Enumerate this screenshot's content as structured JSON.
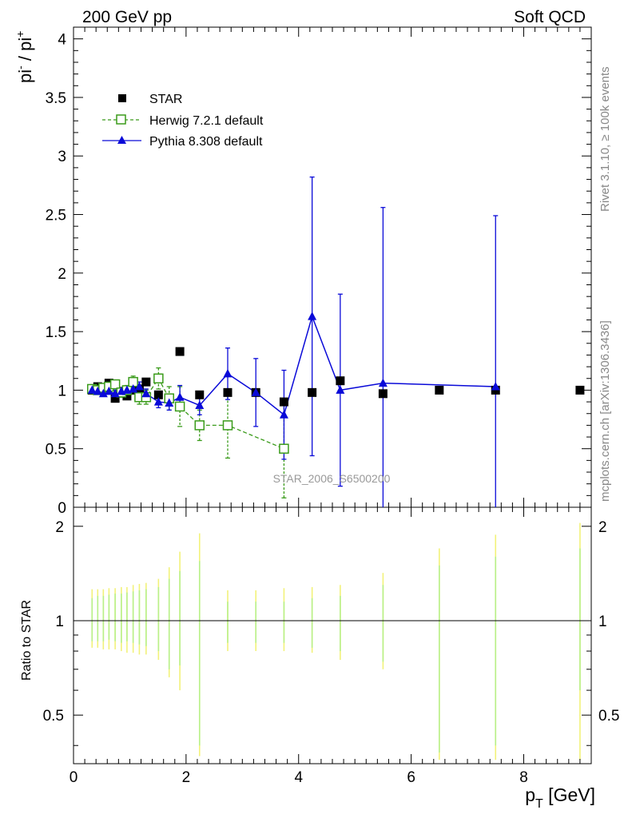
{
  "header": {
    "left_title": "200 GeV pp",
    "right_title": "Soft QCD"
  },
  "side_labels": {
    "rivet": "Rivet 3.1.10, ≥ 100k events",
    "mcplots": "mcplots.cern.ch [arXiv:1306.3436]"
  },
  "watermark": "STAR_2006_S6500200",
  "colors": {
    "star": "#000000",
    "herwig": "#3a9b1a",
    "pythia": "#0a0ad8",
    "herwig_band": "#b8f08a",
    "pythia_band": "#f2f27a"
  },
  "legend": {
    "placement": "top-left",
    "entries": [
      {
        "label": "STAR",
        "marker": "filled-square",
        "color": "#000000"
      },
      {
        "label": "Herwig 7.2.1 default",
        "marker": "open-square-dashed",
        "color": "#3a9b1a"
      },
      {
        "label": "Pythia 8.308 default",
        "marker": "filled-triangle-solid",
        "color": "#0a0ad8"
      }
    ]
  },
  "chart_data": {
    "type": "scatter",
    "main": {
      "ylabel": "pi- / pi+",
      "ylabel_parts": {
        "base1": "pi",
        "sup1": "-",
        "sep": " / pi",
        "sup2": "+"
      },
      "ylim": [
        0,
        4.1
      ],
      "yticks": [
        0,
        0.5,
        1,
        1.5,
        2,
        2.5,
        3,
        3.5,
        4
      ],
      "ytick_labels": [
        "0",
        "0.5",
        "1",
        "1.5",
        "2",
        "2.5",
        "3",
        "3.5",
        "4"
      ],
      "series": [
        {
          "name": "STAR",
          "x": [
            0.33,
            0.43,
            0.53,
            0.63,
            0.74,
            0.85,
            0.95,
            1.06,
            1.17,
            1.29,
            1.51,
            1.7,
            1.89,
            2.24,
            2.74,
            3.24,
            3.74,
            4.24,
            4.74,
            5.5,
            6.5,
            7.5,
            9.0
          ],
          "y": [
            1.0,
            1.03,
            1.01,
            1.06,
            0.93,
            0.99,
            0.95,
            1.0,
            1.01,
            1.07,
            0.96,
            0.93,
            1.33,
            0.96,
            0.98,
            0.98,
            0.9,
            0.98,
            1.08,
            0.97,
            1.0,
            1.0,
            1.0
          ]
        },
        {
          "name": "Herwig 7.2.1 default",
          "x": [
            0.33,
            0.43,
            0.53,
            0.63,
            0.74,
            0.85,
            0.95,
            1.06,
            1.17,
            1.29,
            1.51,
            1.7,
            1.89,
            2.24,
            2.74,
            3.74
          ],
          "y": [
            1.01,
            1.0,
            1.02,
            1.03,
            1.05,
            0.98,
            1.0,
            1.07,
            0.94,
            0.94,
            1.1,
            0.93,
            0.86,
            0.7,
            0.7,
            0.5
          ],
          "yerr": [
            0.02,
            0.02,
            0.02,
            0.03,
            0.03,
            0.04,
            0.04,
            0.05,
            0.06,
            0.06,
            0.09,
            0.1,
            0.17,
            0.13,
            0.28,
            0.42
          ]
        },
        {
          "name": "Pythia 8.308 default",
          "x": [
            0.33,
            0.43,
            0.53,
            0.63,
            0.74,
            0.85,
            0.95,
            1.06,
            1.17,
            1.29,
            1.51,
            1.7,
            1.89,
            2.24,
            2.74,
            3.24,
            3.74,
            4.24,
            4.74,
            5.5,
            7.5
          ],
          "y": [
            1.0,
            0.99,
            0.97,
            0.99,
            0.97,
            0.99,
            1.0,
            1.01,
            1.03,
            0.97,
            0.9,
            0.89,
            0.94,
            0.87,
            1.14,
            0.98,
            0.79,
            1.63,
            1.0,
            1.06,
            1.03
          ],
          "yerr": [
            0.02,
            0.02,
            0.02,
            0.02,
            0.03,
            0.03,
            0.03,
            0.04,
            0.04,
            0.04,
            0.05,
            0.06,
            0.1,
            0.08,
            0.22,
            0.29,
            0.38,
            1.19,
            0.82,
            1.5,
            1.46
          ]
        }
      ]
    },
    "ratio": {
      "ylabel": "Ratio to STAR",
      "ylim": [
        0.35,
        2.3
      ],
      "log_scale": true,
      "yticks": [
        0.5,
        1,
        2
      ],
      "ytick_labels": [
        "0.5",
        "1",
        "2"
      ],
      "reference": 1,
      "bands": {
        "x": [
          0.33,
          0.43,
          0.53,
          0.63,
          0.74,
          0.85,
          0.95,
          1.06,
          1.17,
          1.29,
          1.51,
          1.7,
          1.89,
          2.24,
          2.74,
          3.24,
          3.74,
          4.24,
          4.74,
          5.5,
          6.5,
          7.5,
          9.0
        ],
        "herwig_low": [
          0.86,
          0.86,
          0.86,
          0.87,
          0.86,
          0.85,
          0.86,
          0.85,
          0.84,
          0.83,
          0.8,
          0.7,
          0.72,
          0.4,
          0.85,
          0.85,
          0.85,
          0.82,
          0.8,
          0.74,
          0.38,
          0.4,
          0.6
        ],
        "herwig_high": [
          1.18,
          1.2,
          1.2,
          1.21,
          1.22,
          1.22,
          1.23,
          1.24,
          1.25,
          1.26,
          1.28,
          1.36,
          1.44,
          1.55,
          1.15,
          1.15,
          1.15,
          1.18,
          1.2,
          1.3,
          1.5,
          1.6,
          1.7
        ],
        "pythia_low": [
          0.82,
          0.82,
          0.81,
          0.81,
          0.81,
          0.8,
          0.79,
          0.79,
          0.78,
          0.78,
          0.75,
          0.66,
          0.6,
          0.37,
          0.8,
          0.8,
          0.8,
          0.79,
          0.75,
          0.7,
          0.36,
          0.36,
          0.36
        ],
        "pythia_high": [
          1.26,
          1.26,
          1.26,
          1.27,
          1.27,
          1.28,
          1.28,
          1.3,
          1.31,
          1.32,
          1.36,
          1.48,
          1.66,
          1.9,
          1.25,
          1.25,
          1.27,
          1.28,
          1.3,
          1.42,
          1.7,
          1.88,
          2.05
        ]
      }
    },
    "x_axis": {
      "xlabel": "p_T [GeV]",
      "xlabel_parts": {
        "base": "p",
        "sub": "T",
        "unit": " [GeV]"
      },
      "xlim": [
        0,
        9.2
      ],
      "xticks": [
        0,
        2,
        4,
        6,
        8
      ],
      "xtick_labels": [
        "0",
        "2",
        "4",
        "6",
        "8"
      ]
    },
    "grid": false
  }
}
